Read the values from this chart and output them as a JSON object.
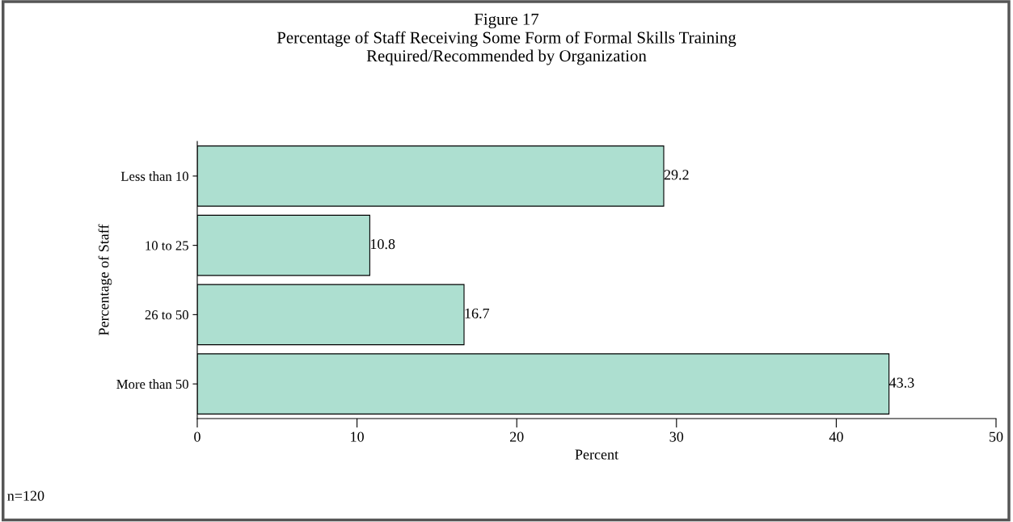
{
  "chart_data": {
    "type": "bar",
    "orientation": "horizontal",
    "title": "Figure 17\nPercentage of Staff Receiving Some Form of Formal Skills Training\nRequired/Recommended by Organization",
    "categories": [
      "Less than 10",
      "10 to 25",
      "26 to 50",
      "More than 50"
    ],
    "values": [
      29.2,
      10.8,
      16.7,
      43.3
    ],
    "color": "#addfd0",
    "xlabel": "Percent",
    "ylabel": "Percentage of Staff",
    "xlim": [
      0,
      50
    ],
    "xticks": [
      0,
      10,
      20,
      30,
      40,
      50
    ],
    "data_labels": true,
    "grid": false,
    "legend": false,
    "annotations": [
      "n=120"
    ]
  }
}
